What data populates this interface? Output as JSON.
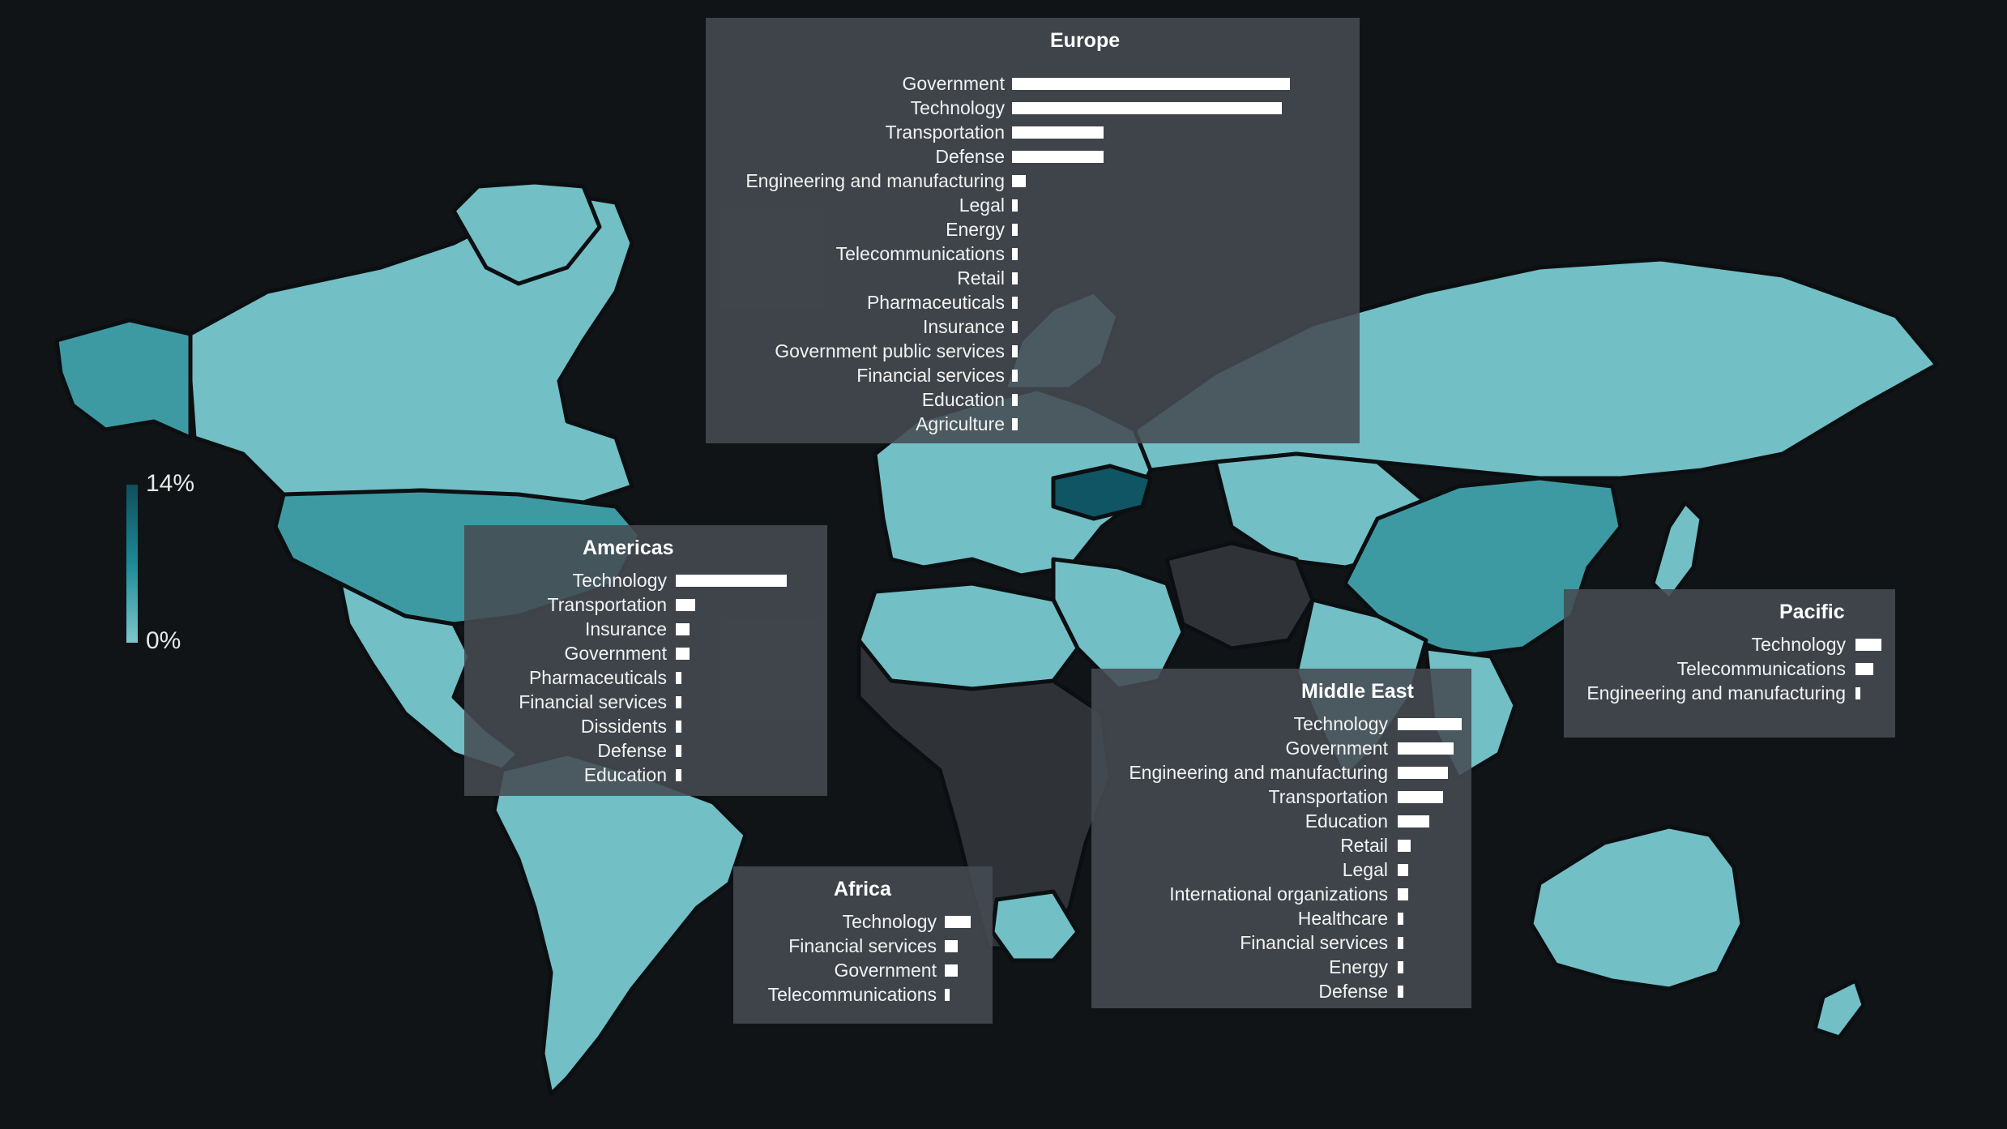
{
  "legend": {
    "max_label": "14%",
    "min_label": "0%",
    "color_low": "#7cc7cd",
    "color_high": "#0f4f5c"
  },
  "map_colors": {
    "background": "#111417",
    "land_default": "#72bfc5",
    "land_no_data": "#2f3338",
    "border": "#0c0f12"
  },
  "chart_data": [
    {
      "type": "bar",
      "title": "Europe",
      "orientation": "horizontal",
      "categories": [
        "Government",
        "Technology",
        "Transportation",
        "Defense",
        "Engineering and manufacturing",
        "Legal",
        "Energy",
        "Telecommunications",
        "Retail",
        "Pharmaceuticals",
        "Insurance",
        "Government public services",
        "Financial services",
        "Education",
        "Agriculture"
      ],
      "values": [
        100,
        97,
        33,
        33,
        5,
        2,
        2,
        2,
        2,
        2,
        2,
        2,
        2,
        2,
        2
      ]
    },
    {
      "type": "bar",
      "title": "Americas",
      "orientation": "horizontal",
      "categories": [
        "Technology",
        "Transportation",
        "Insurance",
        "Government",
        "Pharmaceuticals",
        "Financial services",
        "Dissidents",
        "Defense",
        "Education"
      ],
      "values": [
        40,
        7,
        5,
        5,
        2,
        2,
        2,
        2,
        2
      ]
    },
    {
      "type": "bar",
      "title": "Africa",
      "orientation": "horizontal",
      "categories": [
        "Technology",
        "Financial services",
        "Government",
        "Telecommunications"
      ],
      "values": [
        10,
        5,
        5,
        2
      ]
    },
    {
      "type": "bar",
      "title": "Middle East",
      "orientation": "horizontal",
      "categories": [
        "Technology",
        "Government",
        "Engineering and manufacturing",
        "Transportation",
        "Education",
        "Retail",
        "Legal",
        "International organizations",
        "Healthcare",
        "Financial services",
        "Energy",
        "Defense"
      ],
      "values": [
        24,
        21,
        19,
        17,
        12,
        5,
        4,
        4,
        2,
        2,
        2,
        2
      ]
    },
    {
      "type": "bar",
      "title": "Pacific",
      "orientation": "horizontal",
      "categories": [
        "Technology",
        "Telecommunications",
        "Engineering and manufacturing"
      ],
      "values": [
        10,
        7,
        2
      ]
    }
  ]
}
